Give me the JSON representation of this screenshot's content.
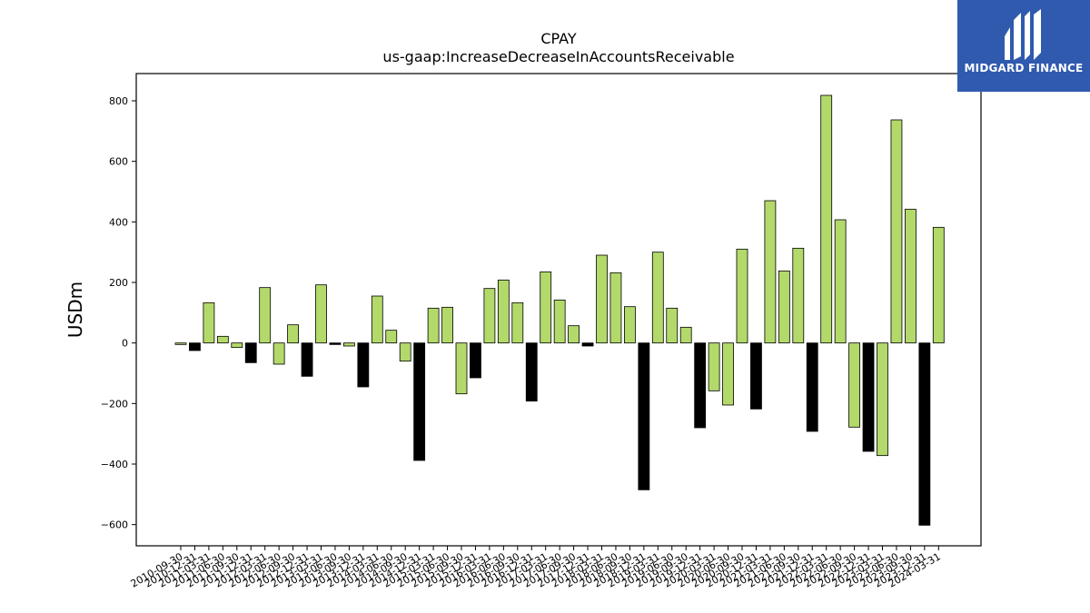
{
  "brand": {
    "logo_text": "MIDGARD FINANCE",
    "logo_color": "#2f5aae"
  },
  "colors": {
    "positive": "#b3d96b",
    "negative": "#000000"
  },
  "chart_data": {
    "type": "bar",
    "title": "CPAY",
    "subtitle": "us-gaap:IncreaseDecreaseInAccountsReceivable",
    "xlabel": "",
    "ylabel": "USDm",
    "ylim": [
      -670,
      890
    ],
    "yticks": [
      -600,
      -400,
      -200,
      0,
      200,
      400,
      600,
      800
    ],
    "grid": false,
    "categories": [
      "2010-09-30",
      "2010-12-31",
      "2011-03-31",
      "2011-06-30",
      "2011-09-30",
      "2011-12-31",
      "2012-03-31",
      "2012-06-30",
      "2012-09-30",
      "2012-12-31",
      "2013-03-31",
      "2013-06-30",
      "2013-09-30",
      "2013-12-31",
      "2014-03-31",
      "2014-06-30",
      "2014-09-30",
      "2014-12-31",
      "2015-03-31",
      "2015-06-30",
      "2015-09-30",
      "2015-12-31",
      "2016-03-31",
      "2016-06-30",
      "2016-09-30",
      "2016-12-31",
      "2017-03-31",
      "2017-06-30",
      "2017-09-30",
      "2017-12-31",
      "2018-03-31",
      "2018-06-30",
      "2018-09-30",
      "2018-12-31",
      "2019-03-31",
      "2019-06-30",
      "2019-09-30",
      "2019-12-31",
      "2020-03-31",
      "2020-06-30",
      "2020-09-30",
      "2020-12-31",
      "2021-03-31",
      "2021-06-30",
      "2021-09-30",
      "2021-12-31",
      "2022-03-31",
      "2022-06-30",
      "2022-09-30",
      "2022-12-31",
      "2023-03-31",
      "2023-06-30",
      "2023-09-30",
      "2023-12-31",
      "2024-03-31"
    ],
    "values": [
      -5,
      -25,
      133,
      22,
      -15,
      -65,
      183,
      -70,
      60,
      -110,
      192,
      -5,
      -10,
      -145,
      155,
      42,
      -60,
      -388,
      115,
      118,
      -168,
      -115,
      180,
      208,
      133,
      -192,
      235,
      142,
      57,
      -10,
      290,
      232,
      120,
      -485,
      300,
      115,
      52,
      -280,
      -158,
      -205,
      310,
      -218,
      470,
      238,
      313,
      -292,
      818,
      407,
      -278,
      -358,
      -372,
      737,
      442,
      -602,
      382
    ],
    "bar_colors": [
      "g",
      "k",
      "g",
      "g",
      "g",
      "k",
      "g",
      "g",
      "g",
      "k",
      "g",
      "k",
      "g",
      "k",
      "g",
      "g",
      "g",
      "k",
      "g",
      "g",
      "g",
      "k",
      "g",
      "g",
      "g",
      "k",
      "g",
      "g",
      "g",
      "k",
      "g",
      "g",
      "g",
      "k",
      "g",
      "g",
      "g",
      "k",
      "g",
      "g",
      "g",
      "k",
      "g",
      "g",
      "g",
      "k",
      "g",
      "g",
      "g",
      "k",
      "g",
      "g",
      "g",
      "k",
      "g"
    ]
  }
}
